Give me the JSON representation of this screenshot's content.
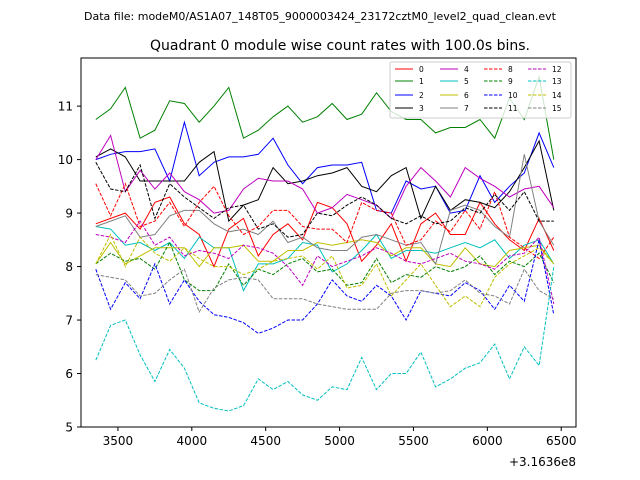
{
  "chart_data": {
    "type": "line",
    "suptitle": "Data file: modeM0/AS1A07_148T05_9000003424_23172cztM0_level2_quad_clean.evt",
    "title": "Quadrant 0 module wise count rates with 100.0s bins.",
    "xlabel": "",
    "ylabel": "",
    "x_offset_label": "+3.1636e8",
    "xlim": [
      3250,
      6600
    ],
    "ylim": [
      5,
      11.9
    ],
    "xticks": [
      3500,
      4000,
      4500,
      5000,
      5500,
      6000,
      6500
    ],
    "yticks": [
      5,
      6,
      7,
      8,
      9,
      10,
      11
    ],
    "legend_position": "top-right",
    "x": [
      3350,
      3450,
      3550,
      3650,
      3750,
      3850,
      3950,
      4050,
      4150,
      4250,
      4350,
      4450,
      4550,
      4650,
      4750,
      4850,
      4950,
      5050,
      5150,
      5250,
      5350,
      5450,
      5550,
      5650,
      5750,
      5850,
      5950,
      6050,
      6150,
      6250,
      6350,
      6450
    ],
    "series": [
      {
        "name": "0",
        "color": "#ff0000",
        "dash": false,
        "values": [
          8.8,
          8.9,
          9.0,
          8.7,
          9.2,
          9.3,
          8.8,
          8.6,
          8.0,
          8.7,
          8.9,
          8.2,
          8.6,
          8.8,
          8.5,
          9.2,
          9.1,
          8.8,
          8.1,
          8.4,
          8.8,
          8.1,
          8.8,
          9.0,
          8.6,
          8.6,
          9.2,
          8.8,
          8.5,
          8.3,
          8.9,
          8.3
        ]
      },
      {
        "name": "1",
        "color": "#008000",
        "dash": false,
        "values": [
          10.75,
          10.95,
          11.35,
          10.4,
          10.55,
          11.1,
          11.05,
          10.7,
          11.0,
          11.35,
          10.4,
          10.55,
          10.8,
          11.0,
          10.7,
          10.8,
          11.05,
          10.75,
          10.85,
          11.25,
          10.9,
          10.75,
          10.75,
          10.5,
          10.6,
          10.6,
          10.75,
          10.4,
          11.15,
          10.75,
          11.55,
          10.0
        ]
      },
      {
        "name": "2",
        "color": "#0000ff",
        "dash": false,
        "values": [
          10.0,
          10.1,
          10.15,
          10.15,
          10.2,
          9.6,
          10.7,
          9.7,
          9.95,
          10.05,
          10.05,
          10.1,
          10.4,
          9.9,
          9.55,
          9.85,
          9.9,
          9.9,
          9.95,
          9.05,
          9.0,
          9.6,
          9.45,
          9.5,
          9.0,
          9.05,
          9.7,
          9.2,
          9.5,
          9.75,
          10.5,
          9.85
        ]
      },
      {
        "name": "3",
        "color": "#000000",
        "dash": false,
        "values": [
          10.05,
          10.2,
          10.05,
          9.6,
          9.6,
          9.6,
          9.6,
          9.95,
          10.15,
          8.85,
          9.15,
          9.25,
          9.85,
          9.55,
          9.6,
          9.7,
          9.75,
          9.85,
          9.5,
          9.4,
          9.7,
          9.85,
          8.9,
          9.5,
          9.05,
          9.25,
          9.2,
          9.1,
          9.4,
          9.85,
          10.35,
          9.05
        ]
      },
      {
        "name": "4",
        "color": "#bf00bf",
        "dash": false,
        "values": [
          10.0,
          10.45,
          9.4,
          9.8,
          9.45,
          9.75,
          9.4,
          9.25,
          9.0,
          9.05,
          9.45,
          9.65,
          9.6,
          9.6,
          9.45,
          9.0,
          9.1,
          9.35,
          9.25,
          9.15,
          8.9,
          9.5,
          9.85,
          9.6,
          9.3,
          9.85,
          9.65,
          9.5,
          9.3,
          9.45,
          9.5,
          9.1
        ]
      },
      {
        "name": "5",
        "color": "#00bfbf",
        "dash": false,
        "values": [
          8.75,
          8.7,
          8.4,
          8.45,
          8.3,
          8.45,
          8.15,
          8.55,
          8.35,
          8.35,
          7.55,
          8.05,
          8.05,
          8.15,
          8.45,
          8.4,
          7.9,
          8.05,
          8.3,
          8.6,
          8.15,
          8.3,
          8.3,
          8.25,
          8.35,
          8.45,
          8.35,
          8.5,
          8.15,
          8.4,
          8.5,
          8.05
        ]
      },
      {
        "name": "6",
        "color": "#bfbf00",
        "dash": false,
        "values": [
          8.05,
          8.45,
          8.05,
          8.2,
          8.35,
          8.35,
          8.35,
          8.0,
          8.35,
          8.35,
          8.4,
          8.1,
          8.1,
          8.3,
          8.3,
          8.45,
          8.4,
          8.45,
          8.5,
          8.45,
          8.2,
          8.35,
          8.35,
          8.05,
          8.0,
          8.35,
          8.05,
          8.0,
          8.3,
          8.35,
          8.4,
          8.05
        ]
      },
      {
        "name": "7",
        "color": "#808080",
        "dash": false,
        "values": [
          8.75,
          8.85,
          8.95,
          8.55,
          8.6,
          8.95,
          9.05,
          9.05,
          8.8,
          8.65,
          8.7,
          8.6,
          8.85,
          8.45,
          8.55,
          8.35,
          8.3,
          8.3,
          8.55,
          8.6,
          8.5,
          8.4,
          8.45,
          8.05,
          9.05,
          9.15,
          9.05,
          8.75,
          8.55,
          10.1,
          8.85,
          8.4
        ]
      },
      {
        "name": "8",
        "color": "#ff0000",
        "dash": true,
        "values": [
          9.55,
          8.95,
          9.55,
          8.75,
          8.85,
          9.2,
          8.75,
          9.2,
          9.5,
          8.95,
          8.6,
          8.75,
          9.05,
          9.05,
          8.75,
          8.7,
          8.7,
          8.45,
          9.2,
          9.05,
          9.0,
          8.4,
          8.5,
          8.85,
          8.65,
          9.05,
          8.7,
          9.4,
          8.55,
          8.35,
          8.15,
          8.55
        ]
      },
      {
        "name": "9",
        "color": "#008000",
        "dash": true,
        "values": [
          8.05,
          8.25,
          8.1,
          8.15,
          7.95,
          8.45,
          7.75,
          7.55,
          7.55,
          8.05,
          7.65,
          7.95,
          7.85,
          8.05,
          8.15,
          7.9,
          7.95,
          7.65,
          7.7,
          8.15,
          7.7,
          7.85,
          7.8,
          8.0,
          7.9,
          8.0,
          8.2,
          7.85,
          8.1,
          8.0,
          8.25,
          7.7
        ]
      },
      {
        "name": "10",
        "color": "#0000ff",
        "dash": true,
        "values": [
          7.95,
          7.2,
          7.7,
          7.4,
          8.05,
          7.3,
          7.75,
          7.35,
          7.1,
          7.05,
          6.95,
          6.75,
          6.85,
          7.0,
          7.0,
          7.3,
          7.75,
          7.45,
          7.35,
          7.65,
          7.45,
          7.0,
          7.55,
          7.5,
          7.45,
          7.7,
          7.55,
          7.2,
          7.65,
          7.35,
          8.5,
          7.1
        ]
      },
      {
        "name": "11",
        "color": "#000000",
        "dash": true,
        "values": [
          9.95,
          9.45,
          9.4,
          9.9,
          8.9,
          9.55,
          9.3,
          9.1,
          8.9,
          9.1,
          9.15,
          8.7,
          8.8,
          8.55,
          8.6,
          9.0,
          8.95,
          9.15,
          9.3,
          9.15,
          8.9,
          8.8,
          8.95,
          8.8,
          8.85,
          9.1,
          9.0,
          9.35,
          9.05,
          9.4,
          8.85,
          8.85
        ]
      },
      {
        "name": "12",
        "color": "#bf00bf",
        "dash": true,
        "values": [
          8.6,
          8.55,
          8.45,
          8.85,
          8.4,
          8.55,
          8.2,
          8.3,
          8.25,
          8.15,
          8.4,
          8.35,
          8.25,
          8.0,
          7.65,
          8.2,
          8.0,
          8.1,
          8.2,
          8.35,
          8.25,
          8.1,
          8.05,
          8.15,
          8.25,
          8.1,
          8.05,
          7.95,
          8.2,
          8.25,
          8.55,
          7.3
        ]
      },
      {
        "name": "13",
        "color": "#00bfbf",
        "dash": true,
        "values": [
          6.25,
          6.9,
          7.0,
          6.35,
          5.85,
          6.45,
          6.1,
          5.45,
          5.35,
          5.3,
          5.4,
          5.9,
          5.7,
          5.85,
          5.6,
          5.5,
          5.75,
          5.7,
          6.3,
          5.7,
          6.0,
          6.0,
          6.4,
          5.75,
          5.9,
          6.1,
          6.2,
          6.55,
          5.9,
          6.5,
          6.15,
          8.0
        ]
      },
      {
        "name": "14",
        "color": "#bfbf00",
        "dash": true,
        "values": [
          8.05,
          8.6,
          8.0,
          8.55,
          8.25,
          8.1,
          8.35,
          8.15,
          8.0,
          8.0,
          7.85,
          7.95,
          8.1,
          8.15,
          8.2,
          7.95,
          8.2,
          7.6,
          7.65,
          8.05,
          7.45,
          7.75,
          8.05,
          7.65,
          7.25,
          7.45,
          7.25,
          7.8,
          8.05,
          8.2,
          8.35,
          8.05
        ]
      },
      {
        "name": "15",
        "color": "#808080",
        "dash": true,
        "values": [
          7.85,
          7.8,
          7.75,
          7.45,
          7.5,
          7.75,
          7.95,
          7.15,
          7.6,
          7.75,
          7.8,
          7.75,
          7.4,
          7.4,
          7.4,
          7.3,
          7.25,
          7.2,
          7.2,
          7.2,
          7.5,
          7.55,
          7.55,
          7.5,
          7.55,
          7.75,
          7.5,
          7.45,
          7.3,
          7.95,
          7.55,
          7.4
        ]
      }
    ]
  }
}
